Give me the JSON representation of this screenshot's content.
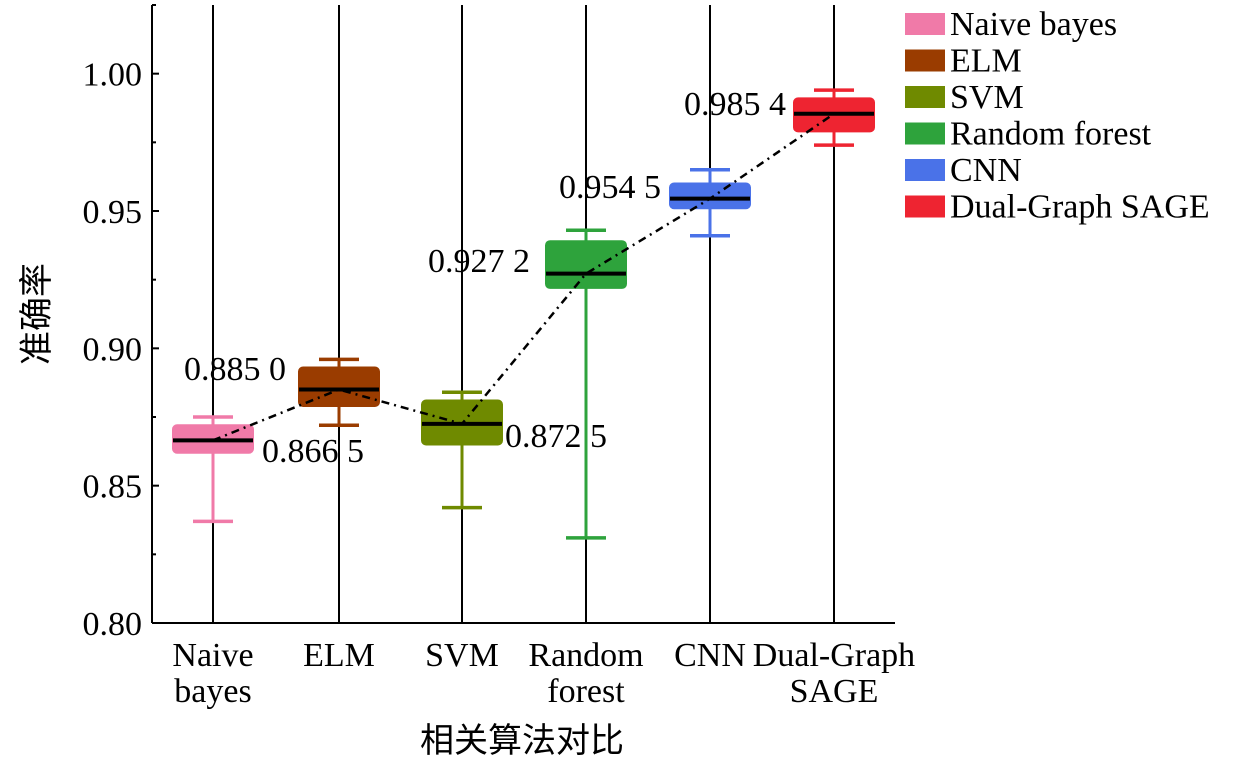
{
  "chart_data": {
    "type": "box",
    "categories": [
      {
        "line1": "Naive",
        "line2": "bayes"
      },
      {
        "line1": "ELM",
        "line2": ""
      },
      {
        "line1": "SVM",
        "line2": ""
      },
      {
        "line1": "Random",
        "line2": "forest"
      },
      {
        "line1": "CNN",
        "line2": ""
      },
      {
        "line1": "Dual-Graph",
        "line2": "SAGE"
      }
    ],
    "series": [
      {
        "name": "Naive bayes",
        "color": "#f07aa8",
        "whisker_low": 0.837,
        "q1": 0.862,
        "median": 0.8665,
        "q3": 0.872,
        "whisker_high": 0.875,
        "annotation": "0.866 5"
      },
      {
        "name": "ELM",
        "color": "#9a3c00",
        "whisker_low": 0.872,
        "q1": 0.879,
        "median": 0.885,
        "q3": 0.893,
        "whisker_high": 0.896,
        "annotation": "0.885 0"
      },
      {
        "name": "SVM",
        "color": "#6f8a00",
        "whisker_low": 0.842,
        "q1": 0.865,
        "median": 0.8725,
        "q3": 0.881,
        "whisker_high": 0.884,
        "annotation": "0.872 5"
      },
      {
        "name": "Random forest",
        "color": "#2ea33c",
        "whisker_low": 0.831,
        "q1": 0.922,
        "median": 0.9272,
        "q3": 0.939,
        "whisker_high": 0.943,
        "annotation": "0.927 2"
      },
      {
        "name": "CNN",
        "color": "#4a72e8",
        "whisker_low": 0.941,
        "q1": 0.951,
        "median": 0.9545,
        "q3": 0.96,
        "whisker_high": 0.965,
        "annotation": "0.954 5"
      },
      {
        "name": "Dual-Graph SAGE",
        "color": "#ee2431",
        "whisker_low": 0.974,
        "q1": 0.979,
        "median": 0.9854,
        "q3": 0.991,
        "whisker_high": 0.994,
        "annotation": "0.985 4"
      }
    ],
    "xlabel": "相关算法对比",
    "ylabel": "准确率",
    "ylim": [
      0.8,
      1.025
    ],
    "yticks": [
      "0.80",
      "0.85",
      "0.90",
      "0.95",
      "1.00"
    ],
    "ytick_values": [
      0.8,
      0.85,
      0.9,
      0.95,
      1.0
    ],
    "grid": "vertical lines at categories",
    "legend_position": "top-right",
    "trend_line": "dash-dot line connecting medians"
  }
}
